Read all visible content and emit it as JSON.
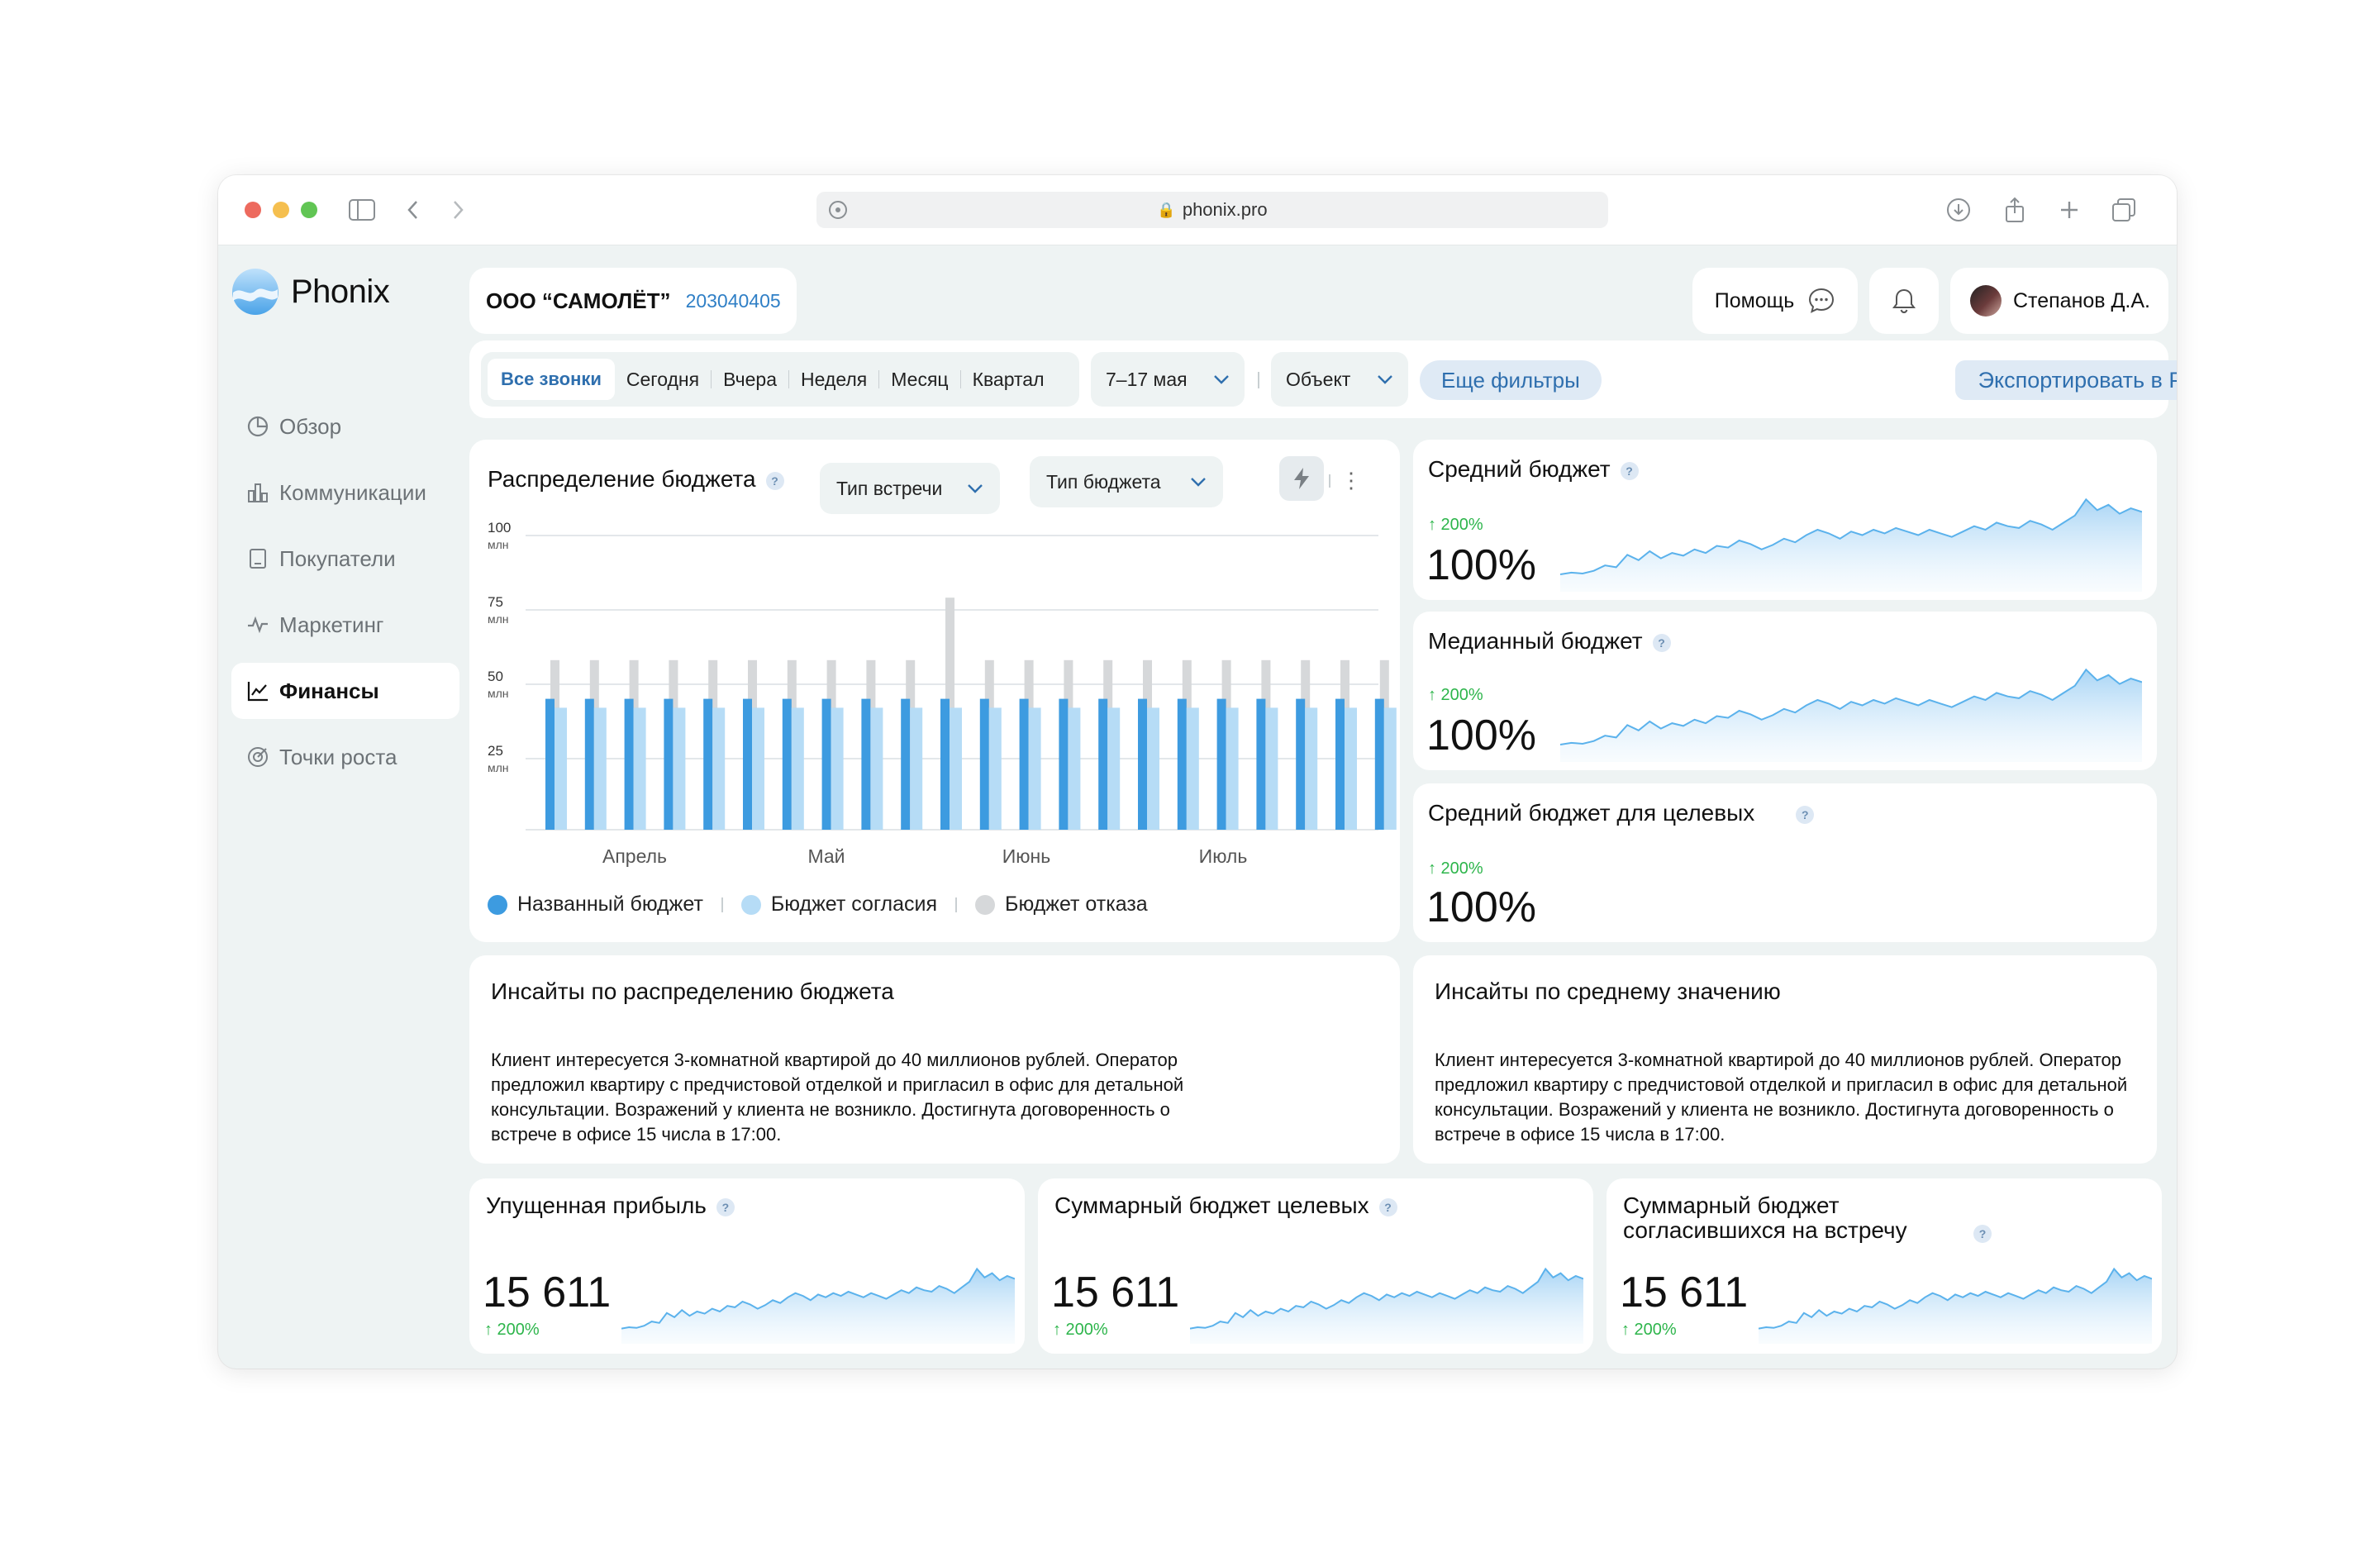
{
  "browser": {
    "url": "phonix.pro"
  },
  "app": {
    "name": "Phonix"
  },
  "sidebar": {
    "items": [
      {
        "label": "Обзор",
        "icon": "pie-chart-icon"
      },
      {
        "label": "Коммуникации",
        "icon": "bar-chart-icon"
      },
      {
        "label": "Покупатели",
        "icon": "contacts-book-icon"
      },
      {
        "label": "Маркетинг",
        "icon": "pulse-icon"
      },
      {
        "label": "Финансы",
        "icon": "line-chart-icon",
        "active": true
      },
      {
        "label": "Точки роста",
        "icon": "target-icon"
      }
    ]
  },
  "header": {
    "company": "ООО “САМОЛЁТ”",
    "inn": "203040405",
    "help": "Помощь",
    "user": "Степанов Д.А."
  },
  "filters": {
    "periods": [
      "Все звонки",
      "Сегодня",
      "Вчера",
      "Неделя",
      "Месяц",
      "Квартал"
    ],
    "active_period": "Все звонки",
    "date_range": "7–17 мая",
    "object": "Объект",
    "more": "Еще фильтры",
    "export": "Экспортировать в PDF"
  },
  "budget_chart": {
    "title": "Распределение бюджета",
    "meeting_type": "Тип встречи",
    "budget_type": "Тип бюджета"
  },
  "chart_data": {
    "type": "bar",
    "y_ticks": [
      "100",
      "75",
      "50",
      "25"
    ],
    "y_unit": "млн",
    "ylim": [
      0,
      100
    ],
    "x_labels": [
      "Апрель",
      "Май",
      "Июнь",
      "Июль"
    ],
    "series": [
      {
        "name": "Названный бюджет",
        "color": "#3d9be0",
        "values": [
          44,
          44,
          44,
          44,
          44,
          44,
          44,
          44,
          44,
          44,
          44,
          44,
          44,
          44,
          44,
          44,
          44,
          44,
          44,
          44,
          44,
          44
        ]
      },
      {
        "name": "Бюджет согласия",
        "color": "#b6dcf6",
        "values": [
          41,
          41,
          41,
          41,
          41,
          41,
          41,
          41,
          41,
          41,
          41,
          41,
          41,
          41,
          41,
          41,
          41,
          41,
          41,
          41,
          41,
          41
        ]
      },
      {
        "name": "Бюджет отказа",
        "color": "#d6d8da",
        "values": [
          57,
          57,
          57,
          57,
          57,
          57,
          57,
          57,
          57,
          57,
          78,
          57,
          57,
          57,
          57,
          57,
          57,
          57,
          57,
          57,
          57,
          57
        ]
      }
    ],
    "legend": "bottom",
    "grid": true
  },
  "metrics": [
    {
      "title": "Средний бюджет",
      "change": "↑ 200%",
      "value": "100%"
    },
    {
      "title": "Медианный бюджет",
      "change": "↑ 200%",
      "value": "100%"
    },
    {
      "title": "Средний бюджет для целевых",
      "change": "↑ 200%",
      "value": "100%"
    }
  ],
  "insights": [
    {
      "title": "Инсайты по распределению бюджета",
      "body": "Клиент интересуется 3-комнатной квартирой до 40 миллионов рублей. Оператор предложил квартиру с предчистовой отделкой и пригласил в офис для детальной консультации. Возражений у клиента не возникло. Достигнута договоренность о встрече в офисе 15 числа в 17:00."
    },
    {
      "title": "Инсайты по среднему значению",
      "body": "Клиент интересуется 3-комнатной квартирой до 40 миллионов рублей. Оператор предложил квартиру с предчистовой отделкой и пригласил в офис для детальной консультации. Возражений у клиента не возникло. Достигнута договоренность о встрече в офисе 15 числа в 17:00."
    }
  ],
  "kpis": [
    {
      "title": "Упущенная прибыль",
      "value": "15 611",
      "change": "↑ 200%"
    },
    {
      "title": "Суммарный бюджет целевых",
      "value": "15 611",
      "change": "↑ 200%"
    },
    {
      "title": "Суммарный бюджет согласившихся на встречу",
      "value": "15 611",
      "change": "↑ 200%"
    }
  ],
  "colors": {
    "accent": "#2f7fc6",
    "positive": "#2db54b",
    "background": "#eef3f3"
  }
}
